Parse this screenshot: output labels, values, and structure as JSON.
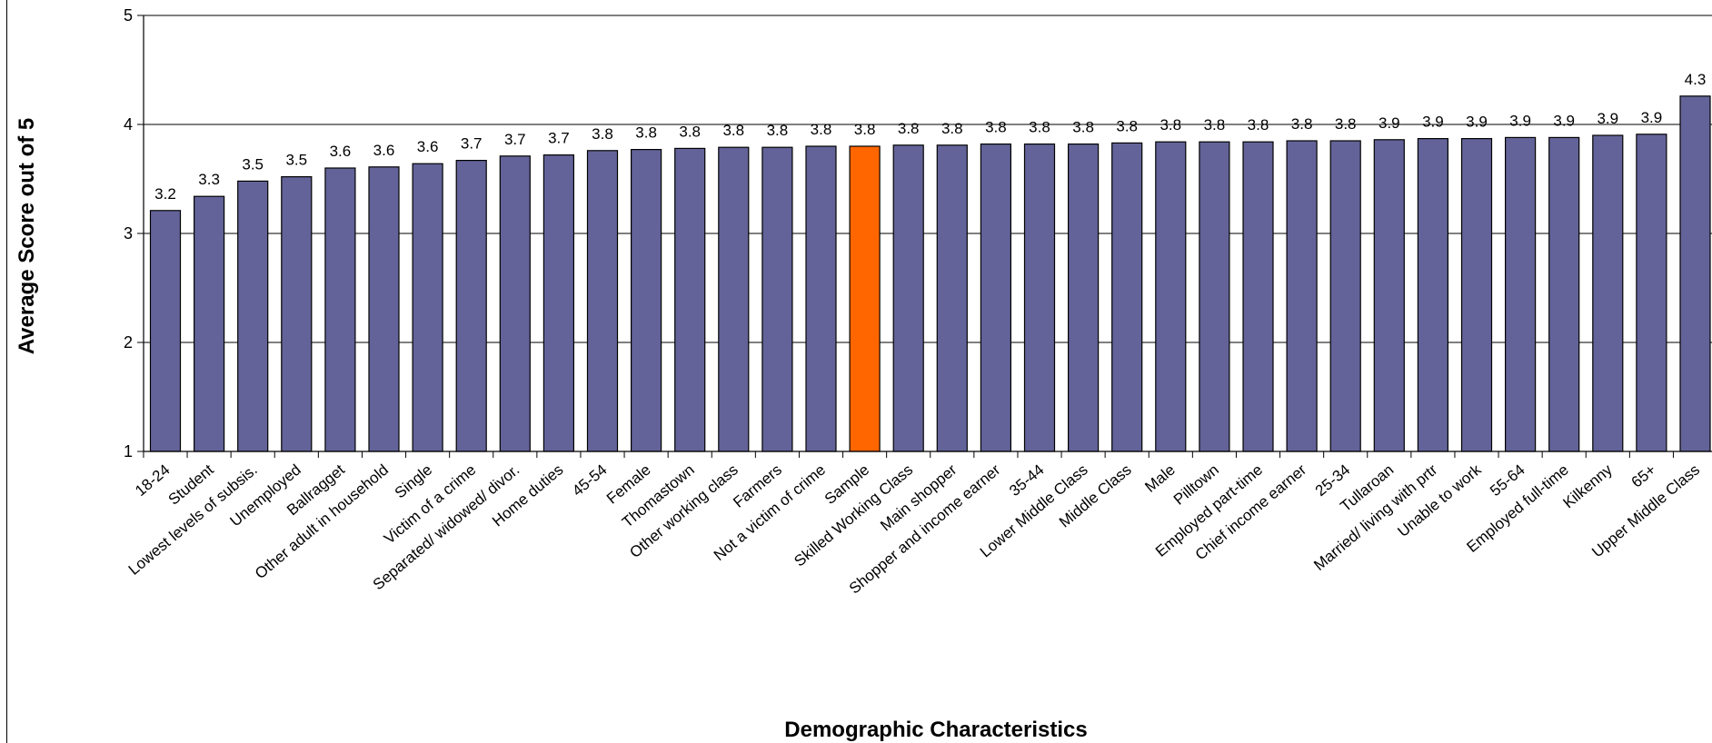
{
  "chart_data": {
    "type": "bar",
    "title": "",
    "xlabel": "Demographic Characteristics",
    "ylabel": "Average Score out of 5",
    "ylim": [
      1,
      5
    ],
    "yticks": [
      1,
      2,
      3,
      4,
      5
    ],
    "grid": true,
    "legend": "none",
    "colors": {
      "bar": "#636399",
      "highlight": "#ff6600",
      "outline": "#000000",
      "grid": "#000000"
    },
    "highlight_category": "Sample",
    "categories": [
      "18-24",
      "Student",
      "Lowest levels of subsis.",
      "Unemployed",
      "Ballragget",
      "Other adult in household",
      "Single",
      "Victim of a crime",
      "Separated/ widowed/ divor.",
      "Home duties",
      "45-54",
      "Female",
      "Thomastown",
      "Other working class",
      "Farmers",
      "Not a victim of crime",
      "Sample",
      "Skilled Working Class",
      "Main shopper",
      "Shopper and income earner",
      "35-44",
      "Lower Middle Class",
      "Middle Class",
      "Male",
      "Pilltown",
      "Employed part-time",
      "Chief income earner",
      "25-34",
      "Tullaroan",
      "Married/ living with prtr",
      "Unable to work",
      "55-64",
      "Employed full-time",
      "Kilkenny",
      "65+",
      "Upper Middle Class"
    ],
    "values": [
      3.21,
      3.34,
      3.48,
      3.52,
      3.6,
      3.61,
      3.64,
      3.67,
      3.71,
      3.72,
      3.76,
      3.77,
      3.78,
      3.79,
      3.79,
      3.8,
      3.8,
      3.81,
      3.81,
      3.82,
      3.82,
      3.82,
      3.83,
      3.84,
      3.84,
      3.84,
      3.85,
      3.85,
      3.86,
      3.87,
      3.87,
      3.88,
      3.88,
      3.9,
      3.91,
      4.26
    ],
    "data_labels": [
      "3.2",
      "3.3",
      "3.5",
      "3.5",
      "3.6",
      "3.6",
      "3.6",
      "3.7",
      "3.7",
      "3.7",
      "3.8",
      "3.8",
      "3.8",
      "3.8",
      "3.8",
      "3.8",
      "3.8",
      "3.8",
      "3.8",
      "3.8",
      "3.8",
      "3.8",
      "3.8",
      "3.8",
      "3.8",
      "3.8",
      "3.8",
      "3.8",
      "3.9",
      "3.9",
      "3.9",
      "3.9",
      "3.9",
      "3.9",
      "3.9",
      "4.3"
    ]
  }
}
